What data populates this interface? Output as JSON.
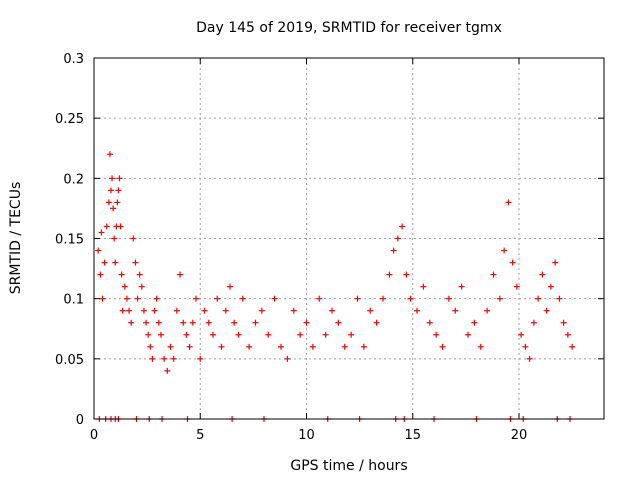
{
  "chart_data": {
    "type": "scatter",
    "title": "Day 145 of 2019, SRMTID for receiver tgmx",
    "xlabel": "GPS time / hours",
    "ylabel": "SRMTID / TECUs",
    "xlim": [
      0,
      24
    ],
    "ylim": [
      0,
      0.3
    ],
    "xticks": [
      0,
      5,
      10,
      15,
      20
    ],
    "xtick_labels": [
      "0",
      "5",
      "10",
      "15",
      "20"
    ],
    "yticks": [
      0,
      0.05,
      0.1,
      0.15,
      0.2,
      0.25,
      0.3
    ],
    "ytick_labels": [
      "0",
      "0.05",
      "0.1",
      "0.15",
      "0.2",
      "0.25",
      "0.3"
    ],
    "grid": true,
    "marker": "plus",
    "marker_color": "#ff0000",
    "series": [
      {
        "name": "SRMTID",
        "x": [
          0.2,
          0.3,
          0.35,
          0.4,
          0.5,
          0.6,
          0.7,
          0.75,
          0.8,
          0.85,
          0.9,
          0.95,
          1.0,
          1.05,
          1.1,
          1.15,
          1.2,
          1.25,
          1.3,
          1.35,
          1.45,
          1.55,
          1.65,
          1.75,
          1.85,
          1.95,
          2.05,
          2.15,
          2.25,
          2.35,
          2.45,
          2.55,
          2.65,
          2.75,
          2.85,
          2.95,
          3.05,
          3.15,
          3.3,
          3.45,
          3.6,
          3.75,
          3.9,
          4.05,
          4.2,
          4.35,
          4.5,
          4.65,
          4.8,
          5.0,
          5.2,
          5.4,
          5.6,
          5.8,
          6.0,
          6.2,
          6.4,
          6.6,
          6.8,
          7.0,
          7.3,
          7.6,
          7.9,
          8.2,
          8.5,
          8.8,
          9.1,
          9.4,
          9.7,
          10.0,
          10.3,
          10.6,
          10.9,
          11.2,
          11.5,
          11.8,
          12.1,
          12.4,
          12.7,
          13.0,
          13.3,
          13.6,
          13.9,
          14.1,
          14.3,
          14.5,
          14.7,
          14.9,
          15.2,
          15.5,
          15.8,
          16.1,
          16.4,
          16.7,
          17.0,
          17.3,
          17.6,
          17.9,
          18.2,
          18.5,
          18.8,
          19.1,
          19.3,
          19.5,
          19.7,
          19.9,
          20.1,
          20.3,
          20.5,
          20.7,
          20.9,
          21.1,
          21.3,
          21.5,
          21.7,
          21.9,
          22.1,
          22.3,
          22.5,
          0.25,
          0.55,
          0.8,
          1.0,
          1.15,
          2.0,
          2.6,
          3.2,
          4.4,
          6.5,
          8.0,
          11.0,
          12.5,
          14.2,
          14.6,
          16.0,
          18.0,
          19.6,
          20.2,
          21.8,
          22.4
        ],
        "y": [
          0.14,
          0.12,
          0.155,
          0.1,
          0.13,
          0.16,
          0.18,
          0.22,
          0.19,
          0.2,
          0.175,
          0.15,
          0.13,
          0.16,
          0.18,
          0.19,
          0.2,
          0.16,
          0.12,
          0.09,
          0.11,
          0.1,
          0.09,
          0.08,
          0.15,
          0.13,
          0.1,
          0.12,
          0.11,
          0.09,
          0.08,
          0.07,
          0.06,
          0.05,
          0.09,
          0.1,
          0.08,
          0.07,
          0.05,
          0.04,
          0.06,
          0.05,
          0.09,
          0.12,
          0.08,
          0.07,
          0.06,
          0.08,
          0.1,
          0.05,
          0.09,
          0.08,
          0.07,
          0.1,
          0.06,
          0.09,
          0.11,
          0.08,
          0.07,
          0.1,
          0.06,
          0.08,
          0.09,
          0.07,
          0.1,
          0.06,
          0.05,
          0.09,
          0.07,
          0.08,
          0.06,
          0.1,
          0.07,
          0.09,
          0.08,
          0.06,
          0.07,
          0.1,
          0.06,
          0.09,
          0.08,
          0.1,
          0.12,
          0.14,
          0.15,
          0.16,
          0.12,
          0.1,
          0.09,
          0.11,
          0.08,
          0.07,
          0.06,
          0.1,
          0.09,
          0.11,
          0.07,
          0.08,
          0.06,
          0.09,
          0.12,
          0.1,
          0.14,
          0.18,
          0.13,
          0.11,
          0.07,
          0.06,
          0.05,
          0.08,
          0.1,
          0.12,
          0.09,
          0.11,
          0.13,
          0.1,
          0.08,
          0.07,
          0.06,
          0.0,
          0.0,
          0.0,
          0.0,
          0.0,
          0.0,
          0.0,
          0.0,
          0.0,
          0.0,
          0.0,
          0.0,
          0.0,
          0.0,
          0.0,
          0.0,
          0.0,
          0.0,
          0.0,
          0.0,
          0.0
        ]
      }
    ]
  }
}
